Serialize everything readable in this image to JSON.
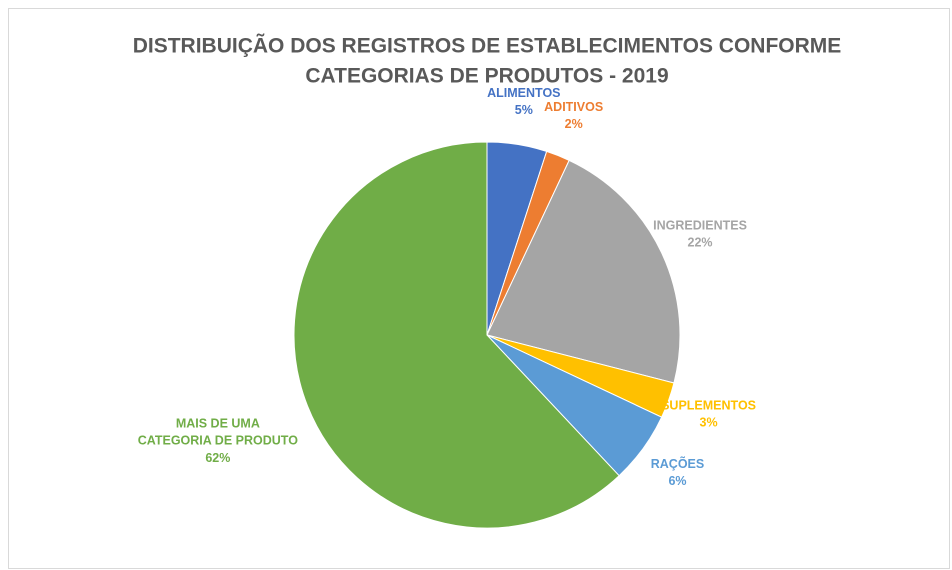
{
  "chart_data": {
    "type": "pie",
    "title": [
      "DISTRIBUIÇÃO DOS  REGISTROS DE ESTABLECIMENTOS CONFORME",
      "CATEGORIAS DE PRODUTOS - 2019"
    ],
    "categories": [
      "ALIMENTOS",
      "ADITIVOS",
      "INGREDIENTES",
      "SUPLEMENTOS",
      "RAÇÕES",
      "MAIS DE UMA CATEGORIA DE PRODUTO"
    ],
    "values": [
      5,
      2,
      22,
      3,
      6,
      62
    ],
    "value_labels": [
      "5%",
      "2%",
      "22%",
      "3%",
      "6%",
      "62%"
    ],
    "colors": [
      "#4472c4",
      "#ed7d31",
      "#a5a5a5",
      "#ffc000",
      "#5b9bd5",
      "#70ad47"
    ]
  }
}
